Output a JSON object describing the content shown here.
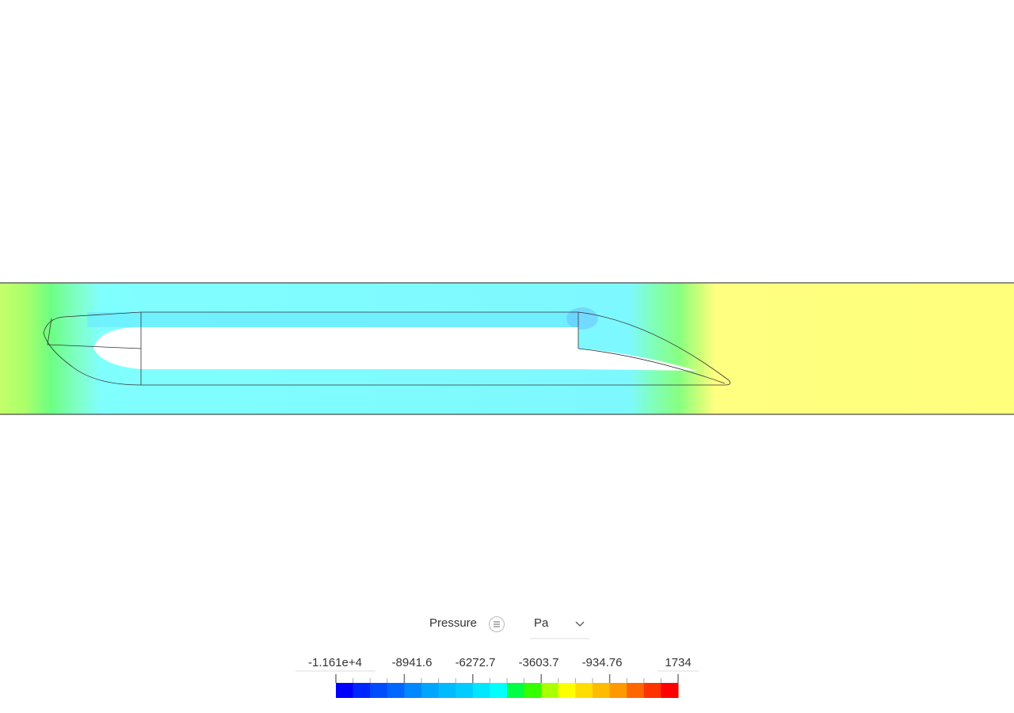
{
  "legend": {
    "title": "Pressure",
    "unit": "Pa",
    "labels": [
      "-1.161e+4",
      "-8941.6",
      "-6272.7",
      "-3603.7",
      "-934.76",
      "1734"
    ]
  }
}
